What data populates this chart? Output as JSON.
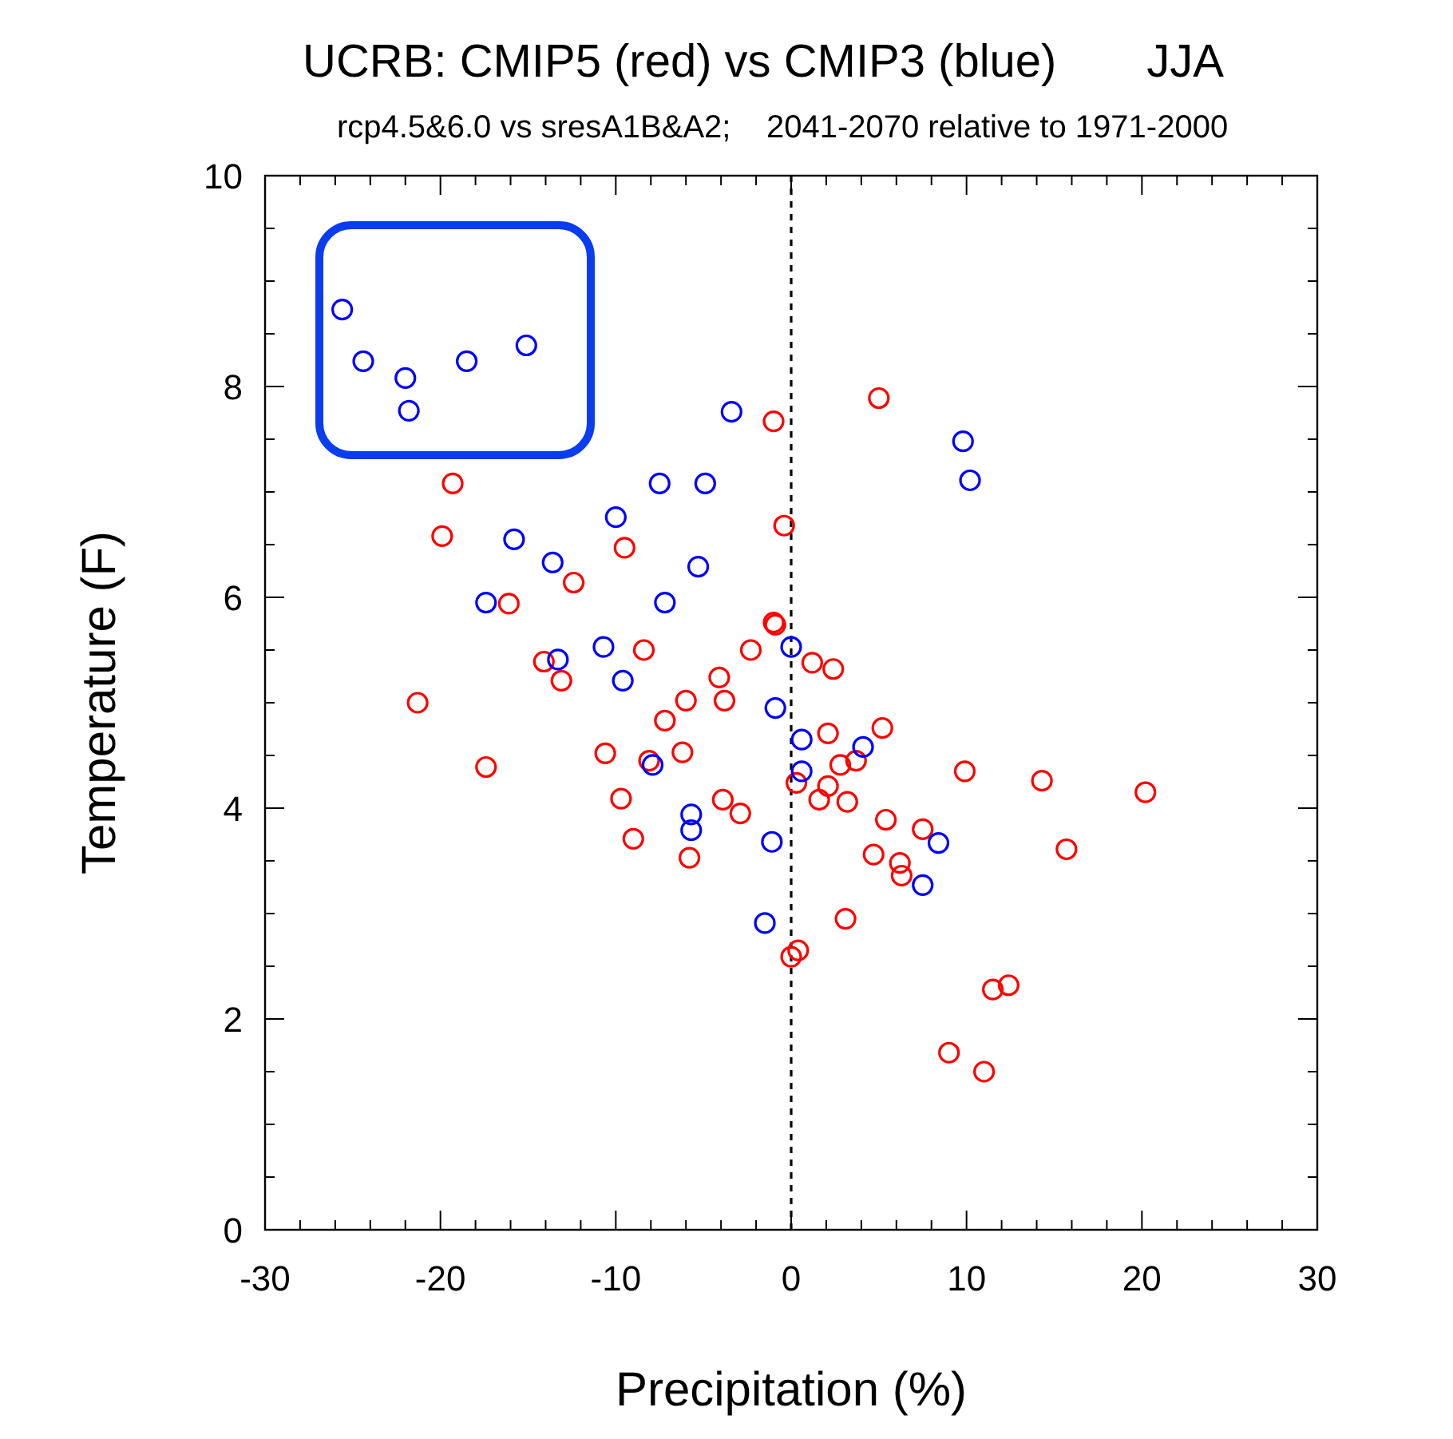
{
  "chart_data": {
    "type": "scatter",
    "title": "UCRB: CMIP5 (red) vs CMIP3 (blue)       JJA",
    "subtitle": "rcp4.5&6.0 vs sresA1B&A2;    2041-2070 relative to 1971-2000",
    "xlabel": "Precipitation (%)",
    "ylabel": "Temperature (F)",
    "xlim": [
      -30,
      30
    ],
    "ylim": [
      0,
      10
    ],
    "xticks": [
      -30,
      {
        "value": -28,
        "label": null
      },
      {
        "value": -26,
        "label": null
      },
      {
        "value": -24,
        "label": null
      },
      {
        "value": -22,
        "label": null
      },
      -20,
      {
        "value": -18,
        "label": null
      },
      {
        "value": -16,
        "label": null
      },
      {
        "value": -14,
        "label": null
      },
      {
        "value": -12,
        "label": null
      },
      -10,
      {
        "value": -8,
        "label": null
      },
      {
        "value": -6,
        "label": null
      },
      {
        "value": -4,
        "label": null
      },
      {
        "value": -2,
        "label": null
      },
      0,
      {
        "value": 2,
        "label": null
      },
      {
        "value": 4,
        "label": null
      },
      {
        "value": 6,
        "label": null
      },
      {
        "value": 8,
        "label": null
      },
      10,
      {
        "value": 12,
        "label": null
      },
      {
        "value": 14,
        "label": null
      },
      {
        "value": 16,
        "label": null
      },
      {
        "value": 18,
        "label": null
      },
      20,
      {
        "value": 22,
        "label": null
      },
      {
        "value": 24,
        "label": null
      },
      {
        "value": 26,
        "label": null
      },
      {
        "value": 28,
        "label": null
      },
      30
    ],
    "yticks": [
      0,
      {
        "value": 0.5,
        "label": null
      },
      {
        "value": 1,
        "label": null
      },
      {
        "value": 1.5,
        "label": null
      },
      2,
      {
        "value": 2.5,
        "label": null
      },
      {
        "value": 3,
        "label": null
      },
      {
        "value": 3.5,
        "label": null
      },
      4,
      {
        "value": 4.5,
        "label": null
      },
      {
        "value": 5,
        "label": null
      },
      {
        "value": 5.5,
        "label": null
      },
      6,
      {
        "value": 6.5,
        "label": null
      },
      {
        "value": 7,
        "label": null
      },
      {
        "value": 7.5,
        "label": null
      },
      8,
      {
        "value": 8.5,
        "label": null
      },
      {
        "value": 9,
        "label": null
      },
      {
        "value": 9.5,
        "label": null
      },
      10
    ],
    "marker": "circle",
    "grid": false,
    "ref_lines": [
      {
        "axis": "x",
        "value": 0,
        "label": null,
        "color": "#000000",
        "line_style": "dashed"
      }
    ],
    "series": [
      {
        "color": "#ff0000",
        "x": [
          5.0,
          -1.0,
          -19.3,
          -19.9,
          -0.4,
          -9.5,
          -12.4,
          -16.1,
          -1.0,
          -0.9,
          -8.4,
          -2.3,
          -14.1,
          -13.1,
          -21.3,
          -6.0,
          -3.8,
          -4.1,
          -7.2,
          -17.4,
          -10.6,
          -8.1,
          -6.2,
          -9.7,
          -3.9,
          -2.9,
          -9.0,
          -5.8,
          0.0,
          0.4,
          1.2,
          2.4,
          2.1,
          5.2,
          2.8,
          3.7,
          9.9,
          14.3,
          20.2,
          0.3,
          2.1,
          1.6,
          3.2,
          5.4,
          7.5,
          15.7,
          4.7,
          6.2,
          6.3,
          3.1,
          11.5,
          12.4,
          9.0,
          11.0
        ],
        "values": [
          7.89,
          7.67,
          7.08,
          6.58,
          6.68,
          6.47,
          6.14,
          5.94,
          5.76,
          5.74,
          5.5,
          5.5,
          5.39,
          5.21,
          5.0,
          5.02,
          5.02,
          5.24,
          4.83,
          4.39,
          4.52,
          4.45,
          4.53,
          4.09,
          4.08,
          3.95,
          3.71,
          3.53,
          2.59,
          2.65,
          5.38,
          5.32,
          4.71,
          4.76,
          4.41,
          4.45,
          4.35,
          4.26,
          4.15,
          4.24,
          4.21,
          4.08,
          4.06,
          3.89,
          3.8,
          3.61,
          3.56,
          3.48,
          3.36,
          2.95,
          2.28,
          2.32,
          1.68,
          1.5
        ]
      },
      {
        "color": "#0000ff",
        "x": [
          -25.6,
          -24.4,
          -22.0,
          -21.8,
          -18.5,
          -15.1,
          -3.4,
          -7.5,
          -4.9,
          -10.0,
          -15.8,
          -13.6,
          -5.3,
          -17.4,
          -7.2,
          -10.7,
          0.0,
          -13.3,
          -9.6,
          -0.9,
          0.6,
          0.6,
          4.1,
          -7.9,
          -5.7,
          -5.7,
          -1.1,
          8.4,
          7.5,
          -1.5,
          9.8,
          10.2
        ],
        "values": [
          8.73,
          8.24,
          8.08,
          7.77,
          8.24,
          8.39,
          7.76,
          7.08,
          7.08,
          6.76,
          6.55,
          6.33,
          6.29,
          5.95,
          5.95,
          5.53,
          5.53,
          5.41,
          5.21,
          4.95,
          4.65,
          4.35,
          4.58,
          4.41,
          3.94,
          3.79,
          3.68,
          3.67,
          3.27,
          2.91,
          7.48,
          7.11
        ]
      }
    ]
  }
}
